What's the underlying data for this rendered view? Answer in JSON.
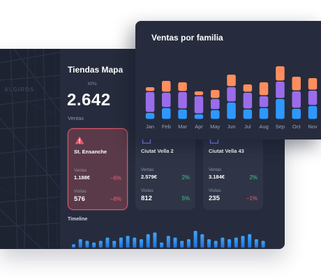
{
  "map": {
    "label": "ALGIROS"
  },
  "panel": {
    "title": "Tiendas Mapa",
    "kpi_label": "KPIs",
    "kpi_value": "2.642",
    "kpi_caption": "Ventas"
  },
  "stores": [
    {
      "name": "St. Ensanche",
      "status": "alert",
      "icon": "warning-icon",
      "ventas_label": "Ventas",
      "ventas": "1.188€",
      "ventas_delta": "−6%",
      "visitas_label": "Visitas",
      "visitas": "576",
      "visitas_delta": "−8%"
    },
    {
      "name": "Ciutat Vella 2",
      "status": "normal",
      "icon": "store-icon",
      "ventas_label": "Ventas",
      "ventas": "2.579€",
      "ventas_delta": "2%",
      "visitas_label": "Visitas",
      "visitas": "812",
      "visitas_delta": "5%"
    },
    {
      "name": "Ciutat Vella 43",
      "status": "normal",
      "icon": "store-icon",
      "ventas_label": "Ventas",
      "ventas": "3.184€",
      "ventas_delta": "2%",
      "visitas_label": "Visitas",
      "visitas": "235",
      "visitas_delta": "−1%"
    }
  ],
  "timeline": {
    "label": "Timeline",
    "values": [
      2,
      5,
      4,
      3,
      4,
      6,
      4,
      6,
      7,
      6,
      5,
      8,
      9,
      3,
      7,
      6,
      4,
      5,
      10,
      8,
      5,
      4,
      6,
      5,
      6,
      7,
      8,
      5,
      4
    ],
    "colors": [
      "#3ea6ff",
      "#1f6fd6"
    ]
  },
  "chart_data": {
    "type": "bar",
    "stacked": true,
    "title": "Ventas por familia",
    "categories": [
      "Jan",
      "Feb",
      "Mar",
      "Apr",
      "May",
      "Jun",
      "Jul",
      "Aug",
      "Sep",
      "Oct",
      "Nov"
    ],
    "series": [
      {
        "values": [
          10,
          17,
          15,
          8,
          14,
          25,
          15,
          17,
          30,
          16,
          20
        ],
        "color": "#2e98ff"
      },
      {
        "values": [
          30,
          22,
          25,
          26,
          16,
          22,
          24,
          17,
          25,
          25,
          22
        ],
        "color": "#9a6cea"
      },
      {
        "values": [
          7,
          17,
          14,
          7,
          13,
          18,
          12,
          20,
          22,
          21,
          18
        ],
        "color": "#ff8e5e"
      }
    ],
    "ylim": [
      0,
      80
    ],
    "grid": false,
    "legend": "none"
  }
}
